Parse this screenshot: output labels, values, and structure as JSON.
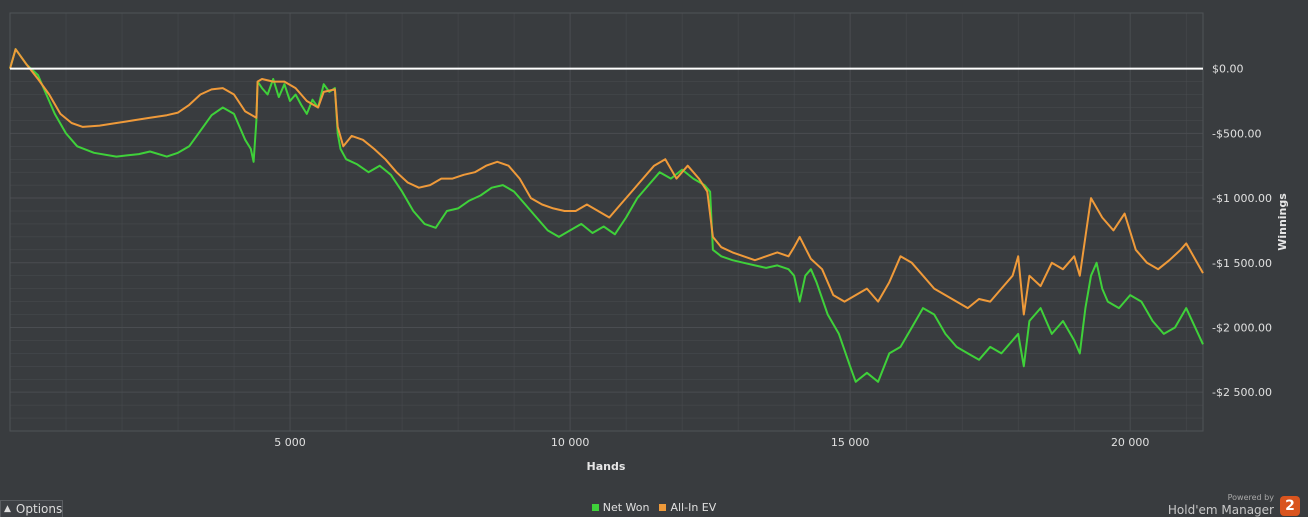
{
  "legend": {
    "net_won": {
      "label": "Net Won",
      "color": "#3fd13a"
    },
    "allin_ev": {
      "label": "All-In EV",
      "color": "#ef9a3a"
    }
  },
  "controls": {
    "options_label": "Options"
  },
  "branding": {
    "powered_by": "Powered by",
    "name": "Hold'em Manager",
    "badge": "2"
  },
  "theme": {
    "background": "#393c3f",
    "grid": "#4a4d51",
    "zero_line": "#ffffff"
  },
  "chart_data": {
    "type": "line",
    "xlabel": "Hands",
    "ylabel": "Winnings",
    "xlim": [
      0,
      21300
    ],
    "ylim": [
      -2800,
      430
    ],
    "x_ticks": [
      5000,
      10000,
      15000,
      20000
    ],
    "x_tick_labels": [
      "5 000",
      "10 000",
      "15 000",
      "20 000"
    ],
    "y_ticks": [
      0,
      -500,
      -1000,
      -1500,
      -2000,
      -2500
    ],
    "y_tick_labels": [
      "$0.00",
      "-$500.00",
      "-$1 000.00",
      "-$1 500.00",
      "-$2 000.00",
      "-$2 500.00"
    ],
    "series": [
      {
        "name": "Net Won",
        "color": "#3fd13a",
        "points": [
          [
            0,
            0
          ],
          [
            100,
            150
          ],
          [
            300,
            30
          ],
          [
            500,
            -50
          ],
          [
            600,
            -150
          ],
          [
            800,
            -350
          ],
          [
            1000,
            -500
          ],
          [
            1200,
            -600
          ],
          [
            1500,
            -650
          ],
          [
            1900,
            -680
          ],
          [
            2300,
            -660
          ],
          [
            2500,
            -640
          ],
          [
            2800,
            -680
          ],
          [
            3000,
            -650
          ],
          [
            3200,
            -600
          ],
          [
            3400,
            -480
          ],
          [
            3600,
            -360
          ],
          [
            3800,
            -300
          ],
          [
            4000,
            -350
          ],
          [
            4100,
            -450
          ],
          [
            4200,
            -550
          ],
          [
            4300,
            -620
          ],
          [
            4350,
            -720
          ],
          [
            4400,
            -400
          ],
          [
            4420,
            -100
          ],
          [
            4500,
            -150
          ],
          [
            4600,
            -200
          ],
          [
            4700,
            -80
          ],
          [
            4800,
            -220
          ],
          [
            4900,
            -120
          ],
          [
            5000,
            -250
          ],
          [
            5100,
            -200
          ],
          [
            5200,
            -280
          ],
          [
            5300,
            -350
          ],
          [
            5400,
            -240
          ],
          [
            5500,
            -300
          ],
          [
            5600,
            -120
          ],
          [
            5700,
            -180
          ],
          [
            5800,
            -150
          ],
          [
            5850,
            -500
          ],
          [
            5900,
            -620
          ],
          [
            6000,
            -700
          ],
          [
            6200,
            -740
          ],
          [
            6400,
            -800
          ],
          [
            6600,
            -750
          ],
          [
            6800,
            -820
          ],
          [
            7000,
            -950
          ],
          [
            7200,
            -1100
          ],
          [
            7400,
            -1200
          ],
          [
            7600,
            -1230
          ],
          [
            7800,
            -1100
          ],
          [
            8000,
            -1080
          ],
          [
            8200,
            -1020
          ],
          [
            8400,
            -980
          ],
          [
            8600,
            -920
          ],
          [
            8800,
            -900
          ],
          [
            9000,
            -950
          ],
          [
            9200,
            -1050
          ],
          [
            9400,
            -1150
          ],
          [
            9600,
            -1250
          ],
          [
            9800,
            -1300
          ],
          [
            10000,
            -1250
          ],
          [
            10200,
            -1200
          ],
          [
            10400,
            -1270
          ],
          [
            10600,
            -1220
          ],
          [
            10800,
            -1280
          ],
          [
            11000,
            -1150
          ],
          [
            11200,
            -1000
          ],
          [
            11400,
            -900
          ],
          [
            11600,
            -800
          ],
          [
            11800,
            -850
          ],
          [
            12000,
            -780
          ],
          [
            12200,
            -850
          ],
          [
            12400,
            -900
          ],
          [
            12500,
            -950
          ],
          [
            12550,
            -1400
          ],
          [
            12700,
            -1450
          ],
          [
            12900,
            -1480
          ],
          [
            13100,
            -1500
          ],
          [
            13300,
            -1520
          ],
          [
            13500,
            -1540
          ],
          [
            13700,
            -1520
          ],
          [
            13900,
            -1550
          ],
          [
            14000,
            -1600
          ],
          [
            14100,
            -1800
          ],
          [
            14200,
            -1600
          ],
          [
            14300,
            -1550
          ],
          [
            14400,
            -1650
          ],
          [
            14600,
            -1900
          ],
          [
            14800,
            -2050
          ],
          [
            15000,
            -2300
          ],
          [
            15100,
            -2420
          ],
          [
            15300,
            -2350
          ],
          [
            15500,
            -2420
          ],
          [
            15700,
            -2200
          ],
          [
            15900,
            -2150
          ],
          [
            16100,
            -2000
          ],
          [
            16300,
            -1850
          ],
          [
            16500,
            -1900
          ],
          [
            16700,
            -2050
          ],
          [
            16900,
            -2150
          ],
          [
            17100,
            -2200
          ],
          [
            17300,
            -2250
          ],
          [
            17500,
            -2150
          ],
          [
            17700,
            -2200
          ],
          [
            17900,
            -2100
          ],
          [
            18000,
            -2050
          ],
          [
            18100,
            -2300
          ],
          [
            18200,
            -1950
          ],
          [
            18400,
            -1850
          ],
          [
            18600,
            -2050
          ],
          [
            18800,
            -1950
          ],
          [
            19000,
            -2100
          ],
          [
            19100,
            -2200
          ],
          [
            19200,
            -1850
          ],
          [
            19300,
            -1600
          ],
          [
            19400,
            -1500
          ],
          [
            19500,
            -1700
          ],
          [
            19600,
            -1800
          ],
          [
            19800,
            -1850
          ],
          [
            20000,
            -1750
          ],
          [
            20200,
            -1800
          ],
          [
            20400,
            -1950
          ],
          [
            20600,
            -2050
          ],
          [
            20800,
            -2000
          ],
          [
            21000,
            -1850
          ],
          [
            21300,
            -2130
          ]
        ]
      },
      {
        "name": "All-In EV",
        "color": "#ef9a3a",
        "points": [
          [
            0,
            0
          ],
          [
            100,
            150
          ],
          [
            300,
            30
          ],
          [
            500,
            -80
          ],
          [
            700,
            -200
          ],
          [
            900,
            -350
          ],
          [
            1100,
            -420
          ],
          [
            1300,
            -450
          ],
          [
            1600,
            -440
          ],
          [
            1900,
            -420
          ],
          [
            2200,
            -400
          ],
          [
            2500,
            -380
          ],
          [
            2800,
            -360
          ],
          [
            3000,
            -340
          ],
          [
            3200,
            -280
          ],
          [
            3400,
            -200
          ],
          [
            3600,
            -160
          ],
          [
            3800,
            -150
          ],
          [
            4000,
            -200
          ],
          [
            4200,
            -330
          ],
          [
            4400,
            -380
          ],
          [
            4420,
            -100
          ],
          [
            4500,
            -80
          ],
          [
            4700,
            -100
          ],
          [
            4900,
            -100
          ],
          [
            5100,
            -150
          ],
          [
            5300,
            -250
          ],
          [
            5500,
            -300
          ],
          [
            5600,
            -180
          ],
          [
            5800,
            -160
          ],
          [
            5850,
            -450
          ],
          [
            5950,
            -600
          ],
          [
            6100,
            -520
          ],
          [
            6300,
            -550
          ],
          [
            6500,
            -620
          ],
          [
            6700,
            -700
          ],
          [
            6900,
            -800
          ],
          [
            7100,
            -880
          ],
          [
            7300,
            -920
          ],
          [
            7500,
            -900
          ],
          [
            7700,
            -850
          ],
          [
            7900,
            -850
          ],
          [
            8100,
            -820
          ],
          [
            8300,
            -800
          ],
          [
            8500,
            -750
          ],
          [
            8700,
            -720
          ],
          [
            8900,
            -750
          ],
          [
            9100,
            -850
          ],
          [
            9300,
            -1000
          ],
          [
            9500,
            -1050
          ],
          [
            9700,
            -1080
          ],
          [
            9900,
            -1100
          ],
          [
            10100,
            -1100
          ],
          [
            10300,
            -1050
          ],
          [
            10500,
            -1100
          ],
          [
            10700,
            -1150
          ],
          [
            10900,
            -1050
          ],
          [
            11100,
            -950
          ],
          [
            11300,
            -850
          ],
          [
            11500,
            -750
          ],
          [
            11700,
            -700
          ],
          [
            11900,
            -850
          ],
          [
            12100,
            -750
          ],
          [
            12300,
            -850
          ],
          [
            12450,
            -950
          ],
          [
            12550,
            -1300
          ],
          [
            12700,
            -1380
          ],
          [
            12900,
            -1420
          ],
          [
            13100,
            -1450
          ],
          [
            13300,
            -1480
          ],
          [
            13500,
            -1450
          ],
          [
            13700,
            -1420
          ],
          [
            13900,
            -1450
          ],
          [
            14000,
            -1380
          ],
          [
            14100,
            -1300
          ],
          [
            14300,
            -1470
          ],
          [
            14500,
            -1550
          ],
          [
            14700,
            -1750
          ],
          [
            14900,
            -1800
          ],
          [
            15100,
            -1750
          ],
          [
            15300,
            -1700
          ],
          [
            15500,
            -1800
          ],
          [
            15700,
            -1650
          ],
          [
            15900,
            -1450
          ],
          [
            16100,
            -1500
          ],
          [
            16300,
            -1600
          ],
          [
            16500,
            -1700
          ],
          [
            16700,
            -1750
          ],
          [
            16900,
            -1800
          ],
          [
            17100,
            -1850
          ],
          [
            17300,
            -1780
          ],
          [
            17500,
            -1800
          ],
          [
            17700,
            -1700
          ],
          [
            17900,
            -1600
          ],
          [
            18000,
            -1450
          ],
          [
            18100,
            -1900
          ],
          [
            18200,
            -1600
          ],
          [
            18400,
            -1680
          ],
          [
            18600,
            -1500
          ],
          [
            18800,
            -1550
          ],
          [
            19000,
            -1450
          ],
          [
            19100,
            -1600
          ],
          [
            19200,
            -1300
          ],
          [
            19300,
            -1000
          ],
          [
            19500,
            -1150
          ],
          [
            19700,
            -1250
          ],
          [
            19900,
            -1120
          ],
          [
            20100,
            -1400
          ],
          [
            20300,
            -1500
          ],
          [
            20500,
            -1550
          ],
          [
            20700,
            -1480
          ],
          [
            20900,
            -1400
          ],
          [
            21000,
            -1350
          ],
          [
            21300,
            -1580
          ]
        ]
      }
    ]
  }
}
